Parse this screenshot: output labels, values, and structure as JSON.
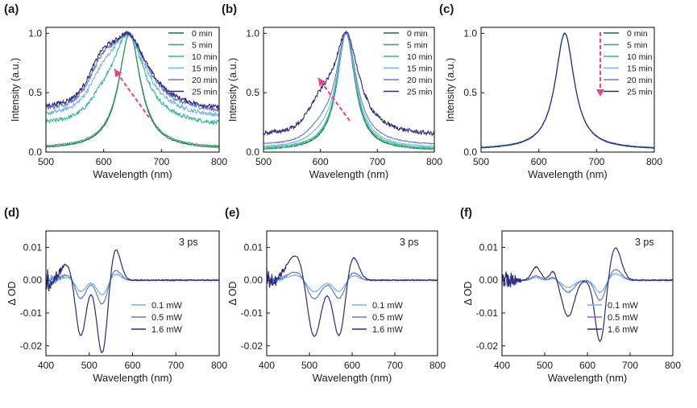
{
  "colors": {
    "axis": "#1a1a1a",
    "arrow": "#f0418c",
    "pl_series": [
      "#1e6b47",
      "#2fa36a",
      "#34b89a",
      "#6fb7de",
      "#6d78c9",
      "#2a2a7a"
    ],
    "ta_series": [
      "#6fb7de",
      "#6d78c9",
      "#2a2a7a"
    ]
  },
  "chart_data": [
    {
      "panel": "(a)",
      "type": "line",
      "xlabel": "Wavelength (nm)",
      "ylabel": "Intensity (a.u.)",
      "xlim": [
        500,
        800
      ],
      "ylim": [
        0,
        1.05
      ],
      "xticks": [
        "500",
        "600",
        "700",
        "800"
      ],
      "yticks": [
        "0.0",
        "0.5",
        "1.0"
      ],
      "legend_position": "top-right",
      "series": [
        {
          "name": "0 min",
          "peak": 645,
          "fwhm": 45,
          "baseline": 0.02,
          "shoulder": 0
        },
        {
          "name": "5 min",
          "peak": 645,
          "fwhm": 46,
          "baseline": 0.03,
          "shoulder": 0
        },
        {
          "name": "10 min",
          "peak": 642,
          "fwhm": 70,
          "baseline": 0.21,
          "shoulder": 0.15
        },
        {
          "name": "15 min",
          "peak": 640,
          "fwhm": 80,
          "baseline": 0.27,
          "shoulder": 0.3
        },
        {
          "name": "20 min",
          "peak": 640,
          "fwhm": 85,
          "baseline": 0.31,
          "shoulder": 0.4
        },
        {
          "name": "25 min",
          "peak": 640,
          "fwhm": 88,
          "baseline": 0.33,
          "shoulder": 0.45
        }
      ]
    },
    {
      "panel": "(b)",
      "type": "line",
      "xlabel": "Wavelength (nm)",
      "ylabel": "Intensity (a.u.)",
      "xlim": [
        500,
        800
      ],
      "ylim": [
        0,
        1.05
      ],
      "xticks": [
        "500",
        "600",
        "700",
        "800"
      ],
      "yticks": [
        "0.0",
        "0.5",
        "1.0"
      ],
      "legend_position": "top-right",
      "series": [
        {
          "name": "0 min",
          "peak": 645,
          "fwhm": 38,
          "baseline": 0.01,
          "shoulder": 0
        },
        {
          "name": "5 min",
          "peak": 645,
          "fwhm": 39,
          "baseline": 0.01,
          "shoulder": 0
        },
        {
          "name": "10 min",
          "peak": 645,
          "fwhm": 40,
          "baseline": 0.02,
          "shoulder": 0
        },
        {
          "name": "15 min",
          "peak": 645,
          "fwhm": 42,
          "baseline": 0.03,
          "shoulder": 0.05
        },
        {
          "name": "20 min",
          "peak": 645,
          "fwhm": 45,
          "baseline": 0.05,
          "shoulder": 0.1
        },
        {
          "name": "25 min",
          "peak": 645,
          "fwhm": 55,
          "baseline": 0.13,
          "shoulder": 0.25
        }
      ]
    },
    {
      "panel": "(c)",
      "type": "line",
      "xlabel": "Wavelength (nm)",
      "ylabel": "Intensity (a.u.)",
      "xlim": [
        500,
        800
      ],
      "ylim": [
        0,
        1.05
      ],
      "xticks": [
        "500",
        "600",
        "700",
        "800"
      ],
      "yticks": [
        "0.0",
        "0.5",
        "1.0"
      ],
      "legend_position": "top-right",
      "series": [
        {
          "name": "0 min",
          "peak": 645,
          "fwhm": 40,
          "baseline": 0.02,
          "shoulder": 0
        },
        {
          "name": "5 min",
          "peak": 645,
          "fwhm": 40,
          "baseline": 0.02,
          "shoulder": 0
        },
        {
          "name": "10 min",
          "peak": 645,
          "fwhm": 40,
          "baseline": 0.02,
          "shoulder": 0
        },
        {
          "name": "15 min",
          "peak": 645,
          "fwhm": 40,
          "baseline": 0.02,
          "shoulder": 0
        },
        {
          "name": "20 min",
          "peak": 645,
          "fwhm": 40,
          "baseline": 0.02,
          "shoulder": 0
        },
        {
          "name": "25 min",
          "peak": 645,
          "fwhm": 40,
          "baseline": 0.02,
          "shoulder": 0
        }
      ]
    },
    {
      "panel": "(d)",
      "type": "line",
      "annotation": "3 ps",
      "xlabel": "Wavelength (nm)",
      "ylabel": "Δ OD",
      "xlim": [
        400,
        800
      ],
      "ylim": [
        -0.023,
        0.015
      ],
      "xticks": [
        "400",
        "500",
        "600",
        "700",
        "800"
      ],
      "yticks": [
        "0.01",
        "0.00",
        "-0.01",
        "-0.02"
      ],
      "legend_position": "bottom-right",
      "series": [
        {
          "name": "0.1 mW",
          "scale": 0.2
        },
        {
          "name": "0.5 mW",
          "scale": 0.33
        },
        {
          "name": "1.6 mW",
          "scale": 1.0
        }
      ],
      "features_1_6mW": [
        [
          450,
          0.005,
          15
        ],
        [
          480,
          -0.0175,
          12
        ],
        [
          530,
          -0.0225,
          12
        ],
        [
          560,
          0.01,
          12
        ]
      ]
    },
    {
      "panel": "(e)",
      "type": "line",
      "annotation": "3 ps",
      "xlabel": "Wavelength (nm)",
      "ylabel": "Δ OD",
      "xlim": [
        400,
        800
      ],
      "ylim": [
        -0.023,
        0.015
      ],
      "xticks": [
        "400",
        "500",
        "600",
        "700",
        "800"
      ],
      "yticks": [
        "0.01",
        "0.00",
        "-0.01",
        "-0.02"
      ],
      "legend_position": "bottom-right",
      "series": [
        {
          "name": "0.1 mW",
          "scale": 0.2
        },
        {
          "name": "0.5 mW",
          "scale": 0.33
        },
        {
          "name": "1.6 mW",
          "scale": 1.0
        }
      ],
      "features_1_6mW": [
        [
          470,
          0.008,
          22
        ],
        [
          510,
          -0.0185,
          16
        ],
        [
          570,
          -0.0175,
          14
        ],
        [
          600,
          0.008,
          14
        ]
      ]
    },
    {
      "panel": "(f)",
      "type": "line",
      "annotation": "3 ps",
      "xlabel": "Wavelength (nm)",
      "ylabel": "Δ OD",
      "xlim": [
        400,
        800
      ],
      "ylim": [
        -0.023,
        0.015
      ],
      "xticks": [
        "400",
        "500",
        "600",
        "700",
        "800"
      ],
      "yticks": [
        "0.01",
        "0.00",
        "-0.01",
        "-0.02"
      ],
      "legend_position": "bottom-right",
      "series": [
        {
          "name": "0.1 mW",
          "scale": 0.2
        },
        {
          "name": "0.5 mW",
          "scale": 0.33
        },
        {
          "name": "1.6 mW",
          "scale": 1.0
        }
      ],
      "features_1_6mW": [
        [
          480,
          0.004,
          10
        ],
        [
          520,
          0.003,
          8
        ],
        [
          555,
          -0.011,
          14
        ],
        [
          630,
          -0.019,
          12
        ],
        [
          665,
          0.01,
          14
        ]
      ]
    }
  ]
}
